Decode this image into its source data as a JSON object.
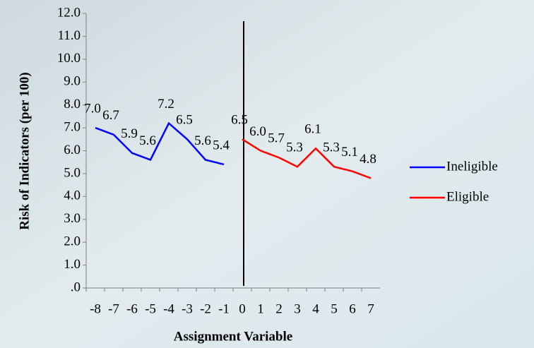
{
  "chart_data": {
    "type": "line",
    "x_label": "Assignment Variable",
    "y_label": "Risk of Indicators (per 100)",
    "categories": [
      "-8",
      "-7",
      "-6",
      "-5",
      "-4",
      "-3",
      "-2",
      "-1",
      "0",
      "1",
      "2",
      "3",
      "4",
      "5",
      "6",
      "7"
    ],
    "series": [
      {
        "name": "Ineligible",
        "color": "#0000ff",
        "values": [
          7.0,
          6.7,
          5.9,
          5.6,
          7.2,
          6.5,
          5.6,
          5.4,
          null,
          null,
          null,
          null,
          null,
          null,
          null,
          null
        ],
        "value_labels": [
          "7.0",
          "6.7",
          "5.9",
          "5.6",
          "7.2",
          "6.5",
          "5.6",
          "5.4",
          null,
          null,
          null,
          null,
          null,
          null,
          null,
          null
        ]
      },
      {
        "name": "Eligible",
        "color": "#ff0000",
        "values": [
          null,
          null,
          null,
          null,
          null,
          null,
          null,
          null,
          6.5,
          6.0,
          5.7,
          5.3,
          6.1,
          5.3,
          5.1,
          4.8
        ],
        "value_labels": [
          null,
          null,
          null,
          null,
          null,
          null,
          null,
          null,
          "6.5",
          "6.0",
          "5.7",
          "5.3",
          "6.1",
          "5.3",
          "5.1",
          "4.8"
        ]
      }
    ],
    "ylim": [
      0,
      12
    ],
    "yticks": [
      {
        "value": 0,
        "label": ".0"
      },
      {
        "value": 1,
        "label": "1.0"
      },
      {
        "value": 2,
        "label": "2.0"
      },
      {
        "value": 3,
        "label": "3.0"
      },
      {
        "value": 4,
        "label": "4.0"
      },
      {
        "value": 5,
        "label": "5.0"
      },
      {
        "value": 6,
        "label": "6.0"
      },
      {
        "value": 7,
        "label": "7.0"
      },
      {
        "value": 8,
        "label": "8.0"
      },
      {
        "value": 9,
        "label": "9.0"
      },
      {
        "value": 10,
        "label": "10.0"
      },
      {
        "value": 11,
        "label": "11.0"
      },
      {
        "value": 12,
        "label": "12.0"
      }
    ],
    "legend": "right"
  }
}
